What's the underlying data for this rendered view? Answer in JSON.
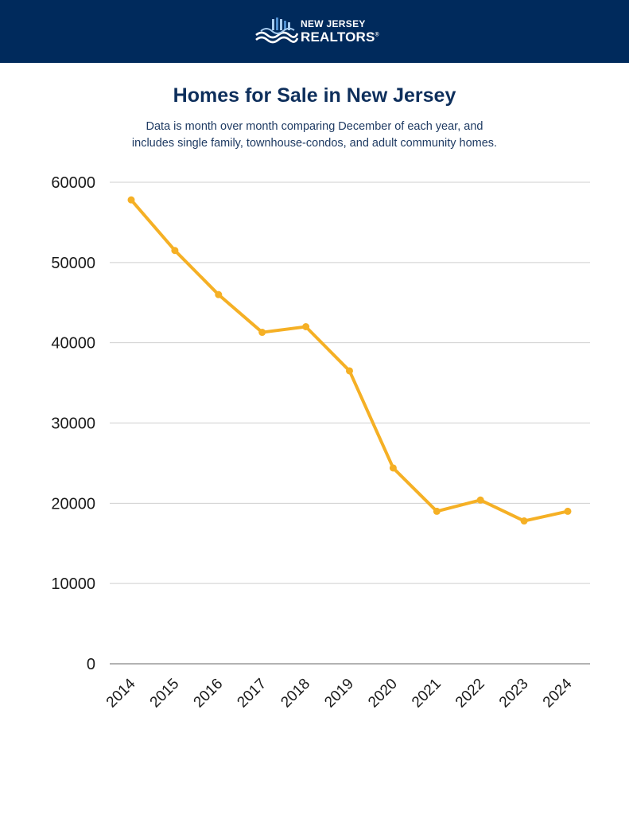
{
  "brand": {
    "line1": "NEW JERSEY",
    "line2": "REALTORS",
    "mark": "®",
    "colors": {
      "header_bg": "#002a5c",
      "logo_light": "#a9cdf0",
      "logo_mid": "#4f8fd0",
      "logo_white": "#ffffff"
    }
  },
  "chart_data": {
    "type": "line",
    "title": "Homes for Sale in New Jersey",
    "subtitle_lines": [
      "Data is month over month comparing December of each year, and",
      "includes single family, townhouse-condos, and adult community homes."
    ],
    "categories": [
      "2014",
      "2015",
      "2016",
      "2017",
      "2018",
      "2019",
      "2020",
      "2021",
      "2022",
      "2023",
      "2024"
    ],
    "series": [
      {
        "values": [
          57800,
          51500,
          46000,
          41300,
          42000,
          36500,
          24400,
          19000,
          20400,
          17800,
          19000
        ],
        "color": "#f5b025"
      }
    ],
    "ylim": [
      0,
      60000
    ],
    "yticks": [
      "0",
      "10000",
      "20000",
      "30000",
      "40000",
      "50000",
      "60000"
    ],
    "grid": true,
    "legend": "none"
  }
}
